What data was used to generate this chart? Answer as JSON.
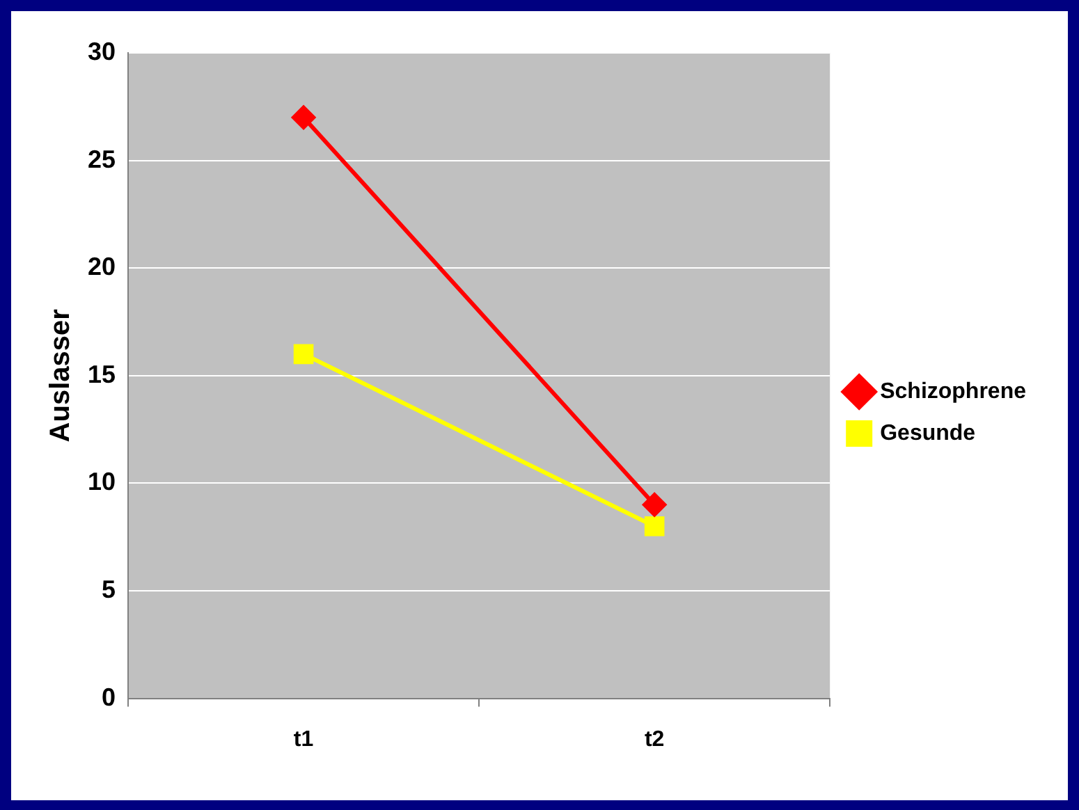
{
  "chart_data": {
    "type": "line",
    "ylabel": "Auslasser",
    "categories": [
      "t1",
      "t2"
    ],
    "series": [
      {
        "name": "Schizophrene",
        "color": "#ff0000",
        "marker": "diamond",
        "values": [
          27,
          9
        ]
      },
      {
        "name": "Gesunde",
        "color": "#ffff00",
        "marker": "square",
        "values": [
          16,
          8
        ]
      }
    ],
    "ylim": [
      0,
      30
    ],
    "yticks": [
      0,
      5,
      10,
      15,
      20,
      25,
      30
    ],
    "grid": "y",
    "legend": "right",
    "line_style": "solid"
  }
}
